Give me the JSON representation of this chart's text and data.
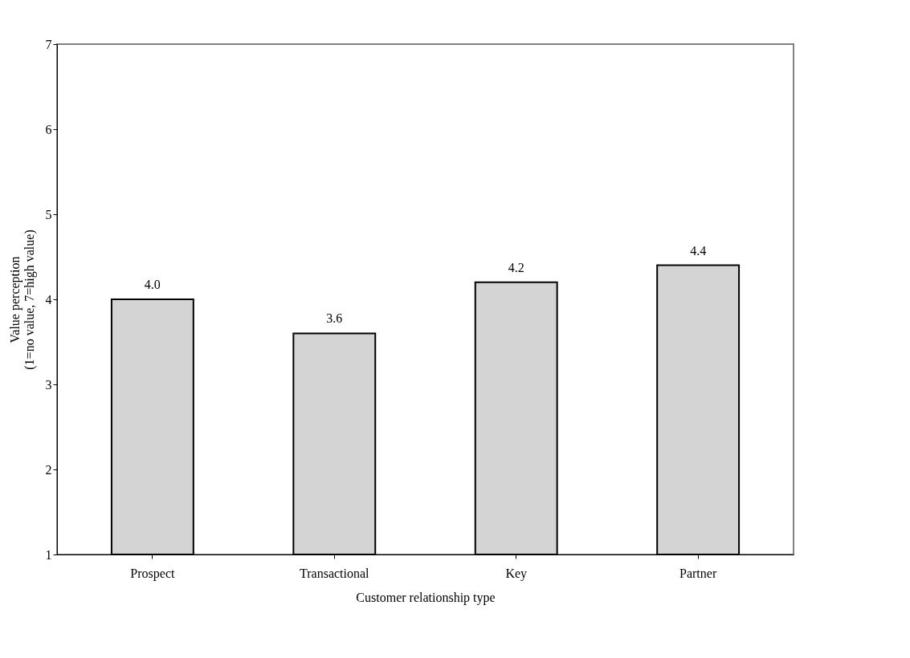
{
  "chart_data": {
    "type": "bar",
    "xlabel": "Customer relationship type",
    "ylabel": "Value perception\n(1=no value, 7=high value)",
    "categories": [
      "Prospect",
      "Transactional",
      "Key",
      "Partner"
    ],
    "values": [
      4.0,
      3.6,
      4.2,
      4.4
    ],
    "color": "#d4d4d4",
    "ylim": [
      1,
      7
    ],
    "yticks": [
      1,
      2,
      3,
      4,
      5,
      6,
      7
    ],
    "value_labels": [
      "4.0",
      "3.6",
      "4.2",
      "4.4"
    ],
    "grid": false
  }
}
